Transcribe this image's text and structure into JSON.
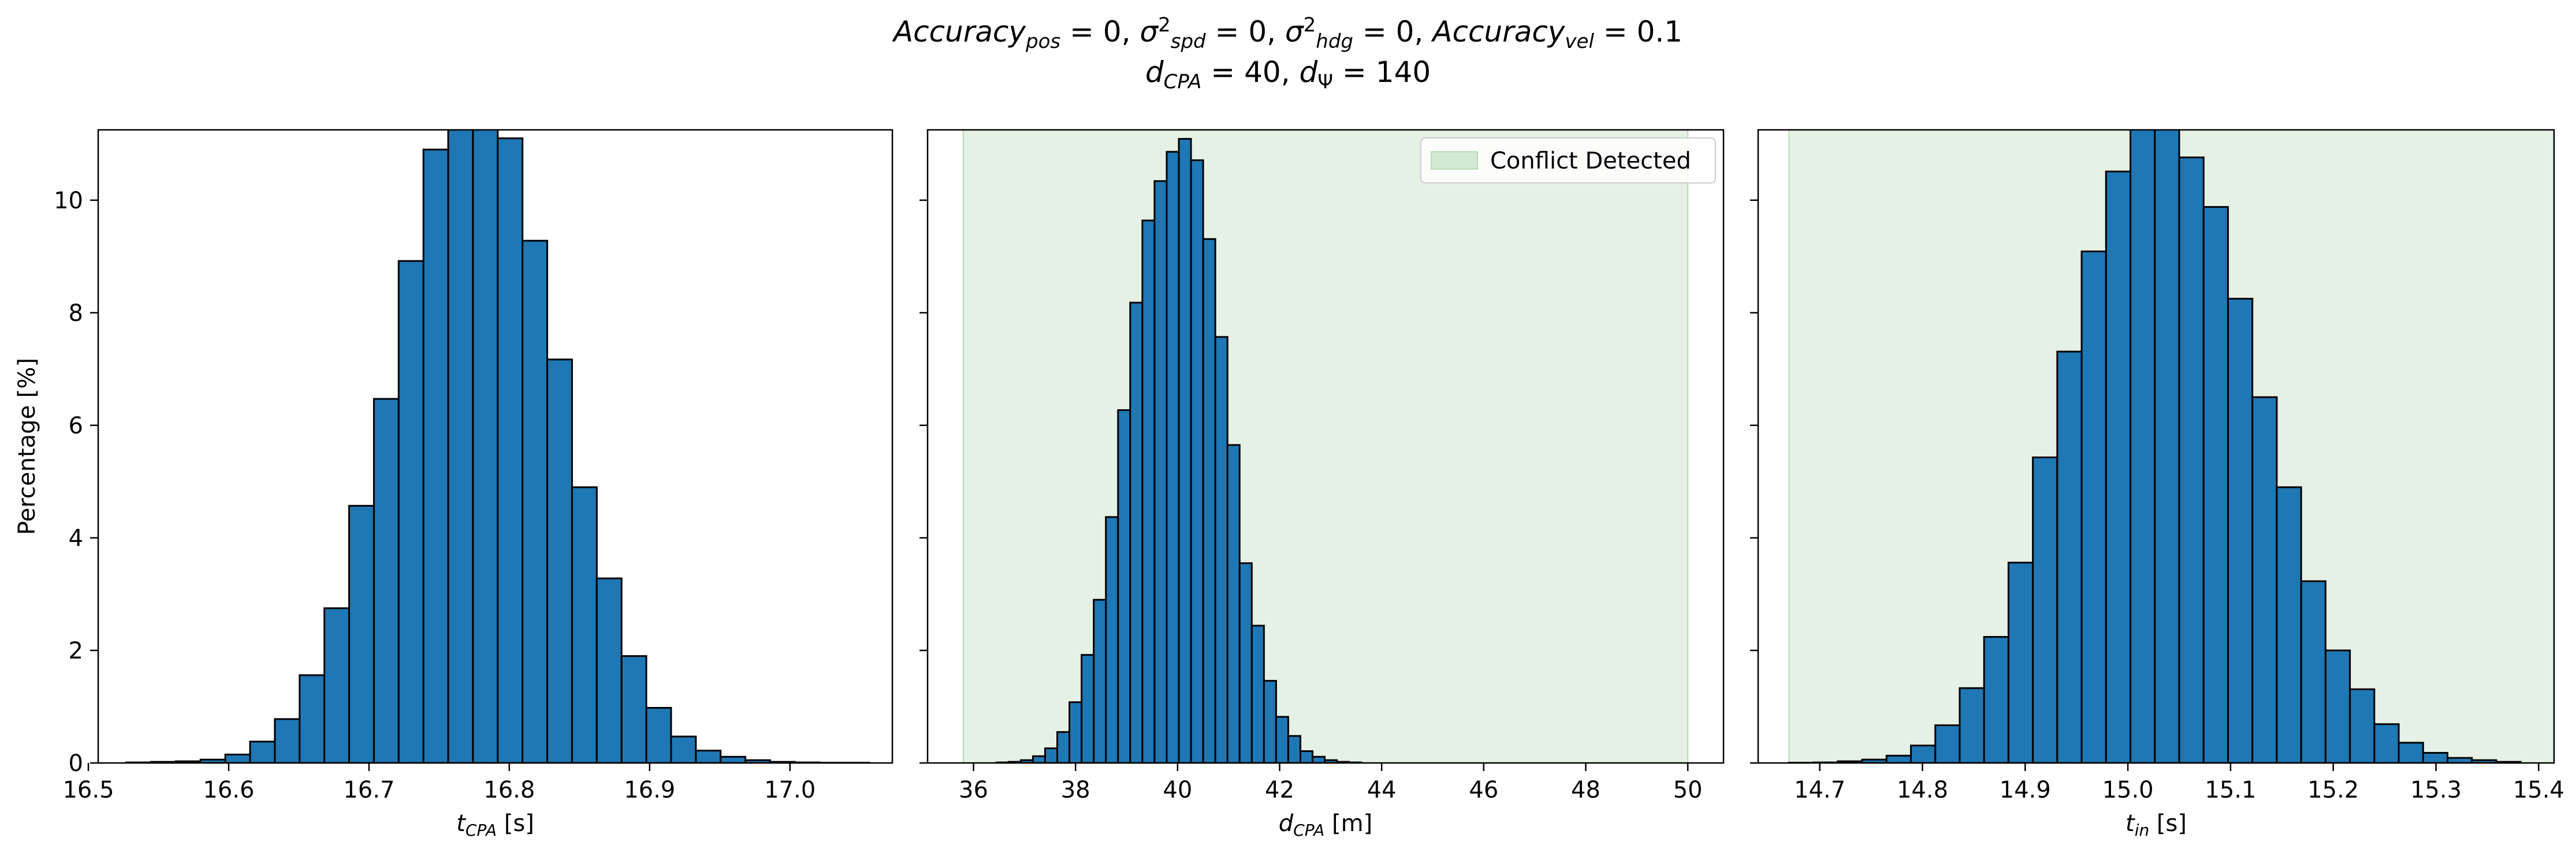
{
  "title": {
    "line1": {
      "accuracy_pos_label": "Accuracy",
      "accuracy_pos_sub": "pos",
      "accuracy_pos_value": " = 0, ",
      "sigma_spd_label": "σ",
      "sigma_spd_sup": "2",
      "sigma_spd_sub": "spd",
      "sigma_spd_value": " = 0, ",
      "sigma_hdg_label": "σ",
      "sigma_hdg_sup": "2",
      "sigma_hdg_sub": "hdg",
      "sigma_hdg_value": " = 0, ",
      "accuracy_vel_label": "Accuracy",
      "accuracy_vel_sub": "vel",
      "accuracy_vel_value": " = 0.1"
    },
    "line2": {
      "d_cpa_label": "d",
      "d_cpa_sub": "CPA",
      "d_cpa_value": " = 40, ",
      "d_psi_label": "d",
      "d_psi_sub": "Ψ",
      "d_psi_value": " = 140"
    }
  },
  "colors": {
    "bar_fill": "#1f77b4",
    "bar_edge": "#000000",
    "conflict_fill": "#d5e8d4",
    "conflict_edge": "#b7d9b5"
  },
  "chart_data": [
    {
      "type": "bar",
      "id": "t_cpa",
      "xlabel_var": "t",
      "xlabel_sub": "CPA",
      "xlabel_unit": " [s]",
      "ylabel": "Percentage [%]",
      "xlim": [
        16.507,
        17.073
      ],
      "ylim": [
        0,
        11.25
      ],
      "xticks": [
        16.5,
        16.6,
        16.7,
        16.8,
        16.9,
        17.0
      ],
      "xtick_labels": [
        "16.5",
        "16.6",
        "16.7",
        "16.8",
        "16.9",
        "17.0"
      ],
      "yticks": [
        0,
        2,
        4,
        6,
        8,
        10
      ],
      "ytick_labels": [
        "0",
        "2",
        "4",
        "6",
        "8",
        "10"
      ],
      "bin_start": 16.527,
      "bin_width": 0.01765,
      "values": [
        0.01,
        0.02,
        0.03,
        0.06,
        0.15,
        0.38,
        0.78,
        1.56,
        2.75,
        4.57,
        6.47,
        8.92,
        10.9,
        11.5,
        11.5,
        11.1,
        9.28,
        7.17,
        4.9,
        3.28,
        1.9,
        0.98,
        0.47,
        0.22,
        0.11,
        0.05,
        0.02,
        0.01,
        0.005,
        0.005
      ],
      "conflict_region": null,
      "legend": null
    },
    {
      "type": "bar",
      "id": "d_cpa",
      "xlabel_var": "d",
      "xlabel_sub": "CPA",
      "xlabel_unit": " [m]",
      "xlim": [
        35.1,
        50.7
      ],
      "ylim": [
        0,
        11.25
      ],
      "xticks": [
        36,
        38,
        40,
        42,
        44,
        46,
        48,
        50
      ],
      "xtick_labels": [
        "36",
        "38",
        "40",
        "42",
        "44",
        "46",
        "48",
        "50"
      ],
      "yticks": [
        0,
        2,
        4,
        6,
        8,
        10
      ],
      "bin_start": 36.45,
      "bin_width": 0.2383,
      "values": [
        0.01,
        0.02,
        0.05,
        0.12,
        0.26,
        0.55,
        1.08,
        1.92,
        2.9,
        4.37,
        6.27,
        8.18,
        9.64,
        10.34,
        10.86,
        11.09,
        10.71,
        9.31,
        7.57,
        5.65,
        3.55,
        2.44,
        1.46,
        0.82,
        0.48,
        0.21,
        0.11,
        0.05,
        0.02,
        0.01
      ],
      "conflict_region": [
        35.8,
        50.0
      ],
      "legend": {
        "label": "Conflict Detected",
        "placement": "upper right"
      }
    },
    {
      "type": "bar",
      "id": "t_in",
      "xlabel_var": "t",
      "xlabel_sub": "in",
      "xlabel_unit": " [s]",
      "xlim": [
        14.64,
        15.415
      ],
      "ylim": [
        0,
        11.25
      ],
      "xticks": [
        14.7,
        14.8,
        14.9,
        15.0,
        15.1,
        15.2,
        15.3,
        15.4
      ],
      "xtick_labels": [
        "14.7",
        "14.8",
        "14.9",
        "15.0",
        "15.1",
        "15.2",
        "15.3",
        "15.4"
      ],
      "yticks": [
        0,
        2,
        4,
        6,
        8,
        10
      ],
      "bin_start": 14.67,
      "bin_width": 0.02375,
      "values": [
        0.005,
        0.01,
        0.03,
        0.06,
        0.13,
        0.31,
        0.67,
        1.33,
        2.24,
        3.56,
        5.43,
        7.31,
        9.09,
        10.51,
        11.45,
        11.4,
        10.76,
        9.88,
        8.25,
        6.5,
        4.9,
        3.23,
        2.0,
        1.31,
        0.69,
        0.36,
        0.18,
        0.09,
        0.05,
        0.02
      ],
      "conflict_region": [
        14.67,
        15.415
      ],
      "legend": null
    }
  ]
}
